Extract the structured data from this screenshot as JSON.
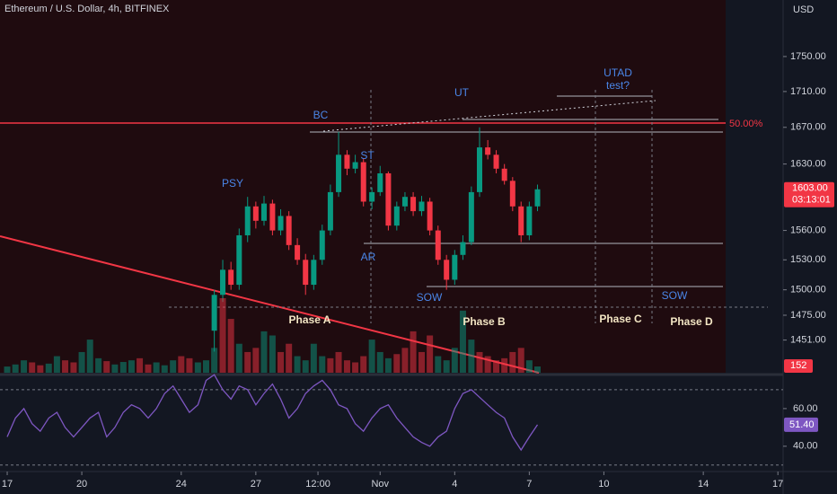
{
  "chart_data": [
    {
      "type": "candlestick",
      "title": "Ethereum / U.S. Dollar, 4h, BITFINEX",
      "y_label": "USD",
      "log_scale": true,
      "grid": false,
      "up_color": "#089981",
      "down_color": "#f23645",
      "x": [
        8.33,
        8.67,
        9,
        9.33,
        9.67,
        10,
        10.33,
        10.67,
        11,
        11.33,
        11.67,
        12,
        12.33,
        12.67,
        13,
        13.33,
        13.67,
        14,
        14.33,
        14.67,
        15,
        15.33,
        15.67,
        16,
        16.33,
        16.67,
        17,
        17.33,
        17.67,
        18,
        18.33,
        18.67,
        19,
        19.33,
        19.67,
        20,
        20.33,
        20.67,
        21,
        21.33
      ],
      "open": [
        1460,
        1495,
        1520,
        1505,
        1555,
        1585,
        1570,
        1588,
        1560,
        1575,
        1545,
        1530,
        1505,
        1530,
        1560,
        1600,
        1640,
        1625,
        1632,
        1590,
        1600,
        1620,
        1565,
        1585,
        1595,
        1580,
        1590,
        1560,
        1530,
        1510,
        1535,
        1548,
        1600,
        1648,
        1640,
        1625,
        1612,
        1585,
        1555,
        1585
      ],
      "high": [
        1500,
        1530,
        1528,
        1562,
        1595,
        1590,
        1596,
        1592,
        1582,
        1580,
        1552,
        1536,
        1535,
        1566,
        1608,
        1665,
        1645,
        1640,
        1636,
        1605,
        1628,
        1622,
        1590,
        1600,
        1600,
        1596,
        1594,
        1565,
        1535,
        1540,
        1555,
        1606,
        1670,
        1656,
        1645,
        1630,
        1616,
        1590,
        1590,
        1608
      ],
      "low": [
        1440,
        1488,
        1500,
        1500,
        1548,
        1562,
        1565,
        1555,
        1555,
        1540,
        1525,
        1495,
        1500,
        1525,
        1555,
        1595,
        1618,
        1620,
        1585,
        1582,
        1596,
        1560,
        1560,
        1580,
        1575,
        1575,
        1555,
        1525,
        1500,
        1505,
        1530,
        1545,
        1595,
        1635,
        1620,
        1608,
        1580,
        1548,
        1550,
        1580
      ],
      "close": [
        1495,
        1520,
        1505,
        1555,
        1585,
        1570,
        1588,
        1560,
        1575,
        1545,
        1530,
        1505,
        1530,
        1560,
        1600,
        1640,
        1625,
        1632,
        1590,
        1600,
        1620,
        1565,
        1585,
        1595,
        1580,
        1590,
        1560,
        1530,
        1510,
        1535,
        1548,
        1600,
        1648,
        1640,
        1625,
        1612,
        1585,
        1555,
        1585,
        1603
      ],
      "last_label": "1603.00",
      "countdown": "03:13:01",
      "ylim": [
        1420,
        1816.6
      ],
      "yticks": [
        {
          "value": 1750,
          "label": "1750.00"
        },
        {
          "value": 1710,
          "label": "1710.00"
        },
        {
          "value": 1670,
          "label": "1670.00"
        },
        {
          "value": 1630,
          "label": "1630.00"
        },
        {
          "value": 1560,
          "label": "1560.00"
        },
        {
          "value": 1530,
          "label": "1530.00"
        },
        {
          "value": 1500,
          "label": "1500.00"
        },
        {
          "value": 1475,
          "label": "1475.00"
        },
        {
          "value": 1451,
          "label": "1451.00"
        }
      ],
      "xlim": [
        -0.29,
        31.21
      ],
      "xticks": [
        {
          "value": 0,
          "label": "17"
        },
        {
          "value": 3,
          "label": "20"
        },
        {
          "value": 7,
          "label": "24"
        },
        {
          "value": 10,
          "label": "27"
        },
        {
          "value": 12.5,
          "label": "12:00"
        },
        {
          "value": 15,
          "label": "Nov"
        },
        {
          "value": 18,
          "label": "4"
        },
        {
          "value": 21,
          "label": "7"
        },
        {
          "value": 24,
          "label": "10"
        },
        {
          "value": 28,
          "label": "14"
        },
        {
          "value": 31,
          "label": "17"
        }
      ],
      "level_label": "50.00%",
      "annotations": [
        "PSY",
        "BC",
        "ST",
        "AR",
        "UT",
        "SOW",
        "SOW",
        "UTAD",
        "test?",
        "Phase A",
        "Phase B",
        "Phase C",
        "Phase D"
      ]
    },
    {
      "type": "bar",
      "up_color": "#089981",
      "down_color": "#f23645",
      "x": [
        0,
        0.33,
        0.67,
        1,
        1.33,
        1.67,
        2,
        2.33,
        2.67,
        3,
        3.33,
        3.67,
        4,
        4.33,
        4.67,
        5,
        5.33,
        5.67,
        6,
        6.33,
        6.67,
        7,
        7.33,
        7.67,
        8,
        8.33,
        8.67,
        9,
        9.33,
        9.67,
        10,
        10.33,
        10.67,
        11,
        11.33,
        11.67,
        12,
        12.33,
        12.67,
        13,
        13.33,
        13.67,
        14,
        14.33,
        14.67,
        15,
        15.33,
        15.67,
        16,
        16.33,
        16.67,
        17,
        17.33,
        17.67,
        18,
        18.33,
        18.67,
        19,
        19.33,
        19.67,
        20,
        20.33,
        20.67,
        21,
        21.33
      ],
      "values": [
        150,
        200,
        300,
        250,
        180,
        220,
        400,
        300,
        250,
        500,
        800,
        350,
        280,
        200,
        260,
        300,
        350,
        200,
        250,
        180,
        300,
        400,
        350,
        250,
        300,
        600,
        1800,
        1300,
        700,
        500,
        600,
        1000,
        900,
        500,
        700,
        400,
        300,
        700,
        400,
        350,
        500,
        300,
        250,
        400,
        800,
        500,
        350,
        450,
        600,
        1000,
        500,
        900,
        400,
        300,
        600,
        1500,
        800,
        500,
        400,
        300,
        350,
        500,
        600,
        300,
        152
      ],
      "ylim": [
        0,
        9000
      ]
    },
    {
      "type": "line",
      "color": "#7e57c2",
      "x": [
        0,
        0.33,
        0.67,
        1,
        1.33,
        1.67,
        2,
        2.33,
        2.67,
        3,
        3.33,
        3.67,
        4,
        4.33,
        4.67,
        5,
        5.33,
        5.67,
        6,
        6.33,
        6.67,
        7,
        7.33,
        7.67,
        8,
        8.33,
        8.67,
        9,
        9.33,
        9.67,
        10,
        10.33,
        10.67,
        11,
        11.33,
        11.67,
        12,
        12.33,
        12.67,
        13,
        13.33,
        13.67,
        14,
        14.33,
        14.67,
        15,
        15.33,
        15.67,
        16,
        16.33,
        16.67,
        17,
        17.33,
        17.67,
        18,
        18.33,
        18.67,
        19,
        19.33,
        19.67,
        20,
        20.33,
        20.67,
        21,
        21.33
      ],
      "values": [
        45,
        55,
        60,
        52,
        48,
        55,
        58,
        50,
        45,
        50,
        55,
        58,
        45,
        50,
        58,
        62,
        60,
        55,
        60,
        68,
        72,
        65,
        58,
        62,
        75,
        78,
        70,
        65,
        72,
        70,
        62,
        68,
        73,
        65,
        55,
        60,
        68,
        72,
        75,
        70,
        62,
        60,
        52,
        48,
        55,
        60,
        62,
        55,
        50,
        45,
        42,
        40,
        45,
        48,
        60,
        68,
        70,
        66,
        62,
        58,
        55,
        45,
        38,
        45,
        51.4
      ],
      "last_label": "51.40",
      "ylim": [
        28,
        77.6
      ],
      "bands": [
        30,
        70
      ],
      "yticks": [
        {
          "value": 60,
          "label": "60.00"
        },
        {
          "value": 40,
          "label": "40.00"
        }
      ]
    }
  ]
}
